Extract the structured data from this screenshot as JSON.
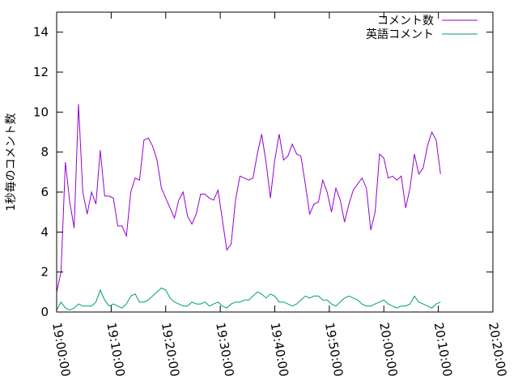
{
  "chart_data": {
    "type": "line",
    "title": "",
    "xlabel": "",
    "ylabel": "1秒毎のコメント数",
    "x_tick_labels": [
      "19:00:00",
      "19:10:00",
      "19:20:00",
      "19:30:00",
      "19:40:00",
      "19:50:00",
      "20:00:00",
      "20:10:00",
      "20:20:00"
    ],
    "x_range_minutes": [
      0,
      80
    ],
    "y_ticks": [
      0,
      2,
      4,
      6,
      8,
      10,
      12,
      14
    ],
    "ylim": [
      0,
      15
    ],
    "grid": false,
    "legend_position": "top-right",
    "series": [
      {
        "name": "コメント数",
        "color": "#9400d3",
        "x": [
          0,
          0.8,
          1.6,
          2.4,
          3.2,
          4.0,
          4.8,
          5.6,
          6.4,
          7.2,
          8.0,
          8.8,
          9.6,
          10.4,
          11.2,
          12.0,
          12.8,
          13.6,
          14.4,
          15.2,
          16.0,
          16.8,
          17.6,
          18.4,
          19.2,
          20.0,
          20.8,
          21.6,
          22.4,
          23.2,
          24.0,
          24.8,
          25.6,
          26.4,
          27.2,
          28.0,
          28.8,
          29.6,
          30.4,
          31.2,
          32.0,
          32.8,
          33.6,
          34.4,
          35.2,
          36.0,
          36.8,
          37.6,
          38.4,
          39.2,
          40.0,
          40.8,
          41.6,
          42.4,
          43.2,
          44.0,
          44.8,
          45.6,
          46.4,
          47.2,
          48.0,
          48.8,
          49.6,
          50.4,
          51.2,
          52.0,
          52.8,
          53.6,
          54.4,
          55.2,
          56.0,
          56.8,
          57.6,
          58.4,
          59.2,
          60.0,
          60.8,
          61.6,
          62.4,
          63.2,
          64.0,
          64.8,
          65.6,
          66.4,
          67.2,
          68.0,
          68.8,
          69.6,
          70.4
        ],
        "values": [
          1.0,
          2.0,
          7.5,
          5.5,
          4.2,
          10.4,
          6.0,
          4.9,
          6.0,
          5.4,
          8.1,
          5.8,
          5.8,
          5.7,
          4.3,
          4.3,
          3.8,
          6.0,
          6.7,
          6.6,
          8.6,
          8.7,
          8.3,
          7.6,
          6.2,
          5.7,
          5.2,
          4.7,
          5.6,
          6.0,
          4.8,
          4.4,
          4.9,
          5.9,
          5.9,
          5.7,
          5.6,
          6.1,
          4.6,
          3.1,
          3.4,
          5.6,
          6.8,
          6.7,
          6.6,
          6.7,
          7.9,
          8.9,
          7.5,
          5.7,
          7.6,
          8.9,
          7.6,
          7.8,
          8.4,
          7.9,
          7.8,
          6.4,
          4.9,
          5.4,
          5.5,
          6.6,
          6.0,
          5.0,
          6.2,
          5.6,
          4.5,
          5.4,
          6.1,
          6.4,
          6.7,
          6.2,
          4.1,
          5.0,
          7.9,
          7.7,
          6.7,
          6.8,
          6.6,
          6.8,
          5.2,
          6.2,
          7.9,
          6.9,
          7.2,
          8.3,
          9.0,
          8.6,
          6.9
        ]
      },
      {
        "name": "英語コメント",
        "color": "#009e73",
        "x": [
          0,
          0.8,
          1.6,
          2.4,
          3.2,
          4.0,
          4.8,
          5.6,
          6.4,
          7.2,
          8.0,
          8.8,
          9.6,
          10.4,
          11.2,
          12.0,
          12.8,
          13.6,
          14.4,
          15.2,
          16.0,
          16.8,
          17.6,
          18.4,
          19.2,
          20.0,
          20.8,
          21.6,
          22.4,
          23.2,
          24.0,
          24.8,
          25.6,
          26.4,
          27.2,
          28.0,
          28.8,
          29.6,
          30.4,
          31.2,
          32.0,
          32.8,
          33.6,
          34.4,
          35.2,
          36.0,
          36.8,
          37.6,
          38.4,
          39.2,
          40.0,
          40.8,
          41.6,
          42.4,
          43.2,
          44.0,
          44.8,
          45.6,
          46.4,
          47.2,
          48.0,
          48.8,
          49.6,
          50.4,
          51.2,
          52.0,
          52.8,
          53.6,
          54.4,
          55.2,
          56.0,
          56.8,
          57.6,
          58.4,
          59.2,
          60.0,
          60.8,
          61.6,
          62.4,
          63.2,
          64.0,
          64.8,
          65.6,
          66.4,
          67.2,
          68.0,
          68.8,
          69.6,
          70.4
        ],
        "values": [
          0.1,
          0.5,
          0.2,
          0.1,
          0.2,
          0.4,
          0.3,
          0.3,
          0.3,
          0.5,
          1.1,
          0.6,
          0.3,
          0.4,
          0.3,
          0.2,
          0.4,
          0.8,
          0.9,
          0.5,
          0.5,
          0.6,
          0.8,
          1.0,
          1.2,
          1.1,
          0.7,
          0.5,
          0.4,
          0.3,
          0.3,
          0.5,
          0.4,
          0.4,
          0.5,
          0.3,
          0.4,
          0.5,
          0.3,
          0.2,
          0.4,
          0.5,
          0.5,
          0.6,
          0.6,
          0.8,
          1.0,
          0.9,
          0.7,
          0.9,
          0.8,
          0.5,
          0.5,
          0.4,
          0.3,
          0.4,
          0.6,
          0.8,
          0.7,
          0.8,
          0.8,
          0.6,
          0.6,
          0.4,
          0.3,
          0.5,
          0.7,
          0.8,
          0.7,
          0.6,
          0.4,
          0.3,
          0.3,
          0.4,
          0.5,
          0.6,
          0.4,
          0.3,
          0.2,
          0.3,
          0.3,
          0.4,
          0.8,
          0.5,
          0.4,
          0.3,
          0.2,
          0.4,
          0.5
        ]
      }
    ]
  }
}
